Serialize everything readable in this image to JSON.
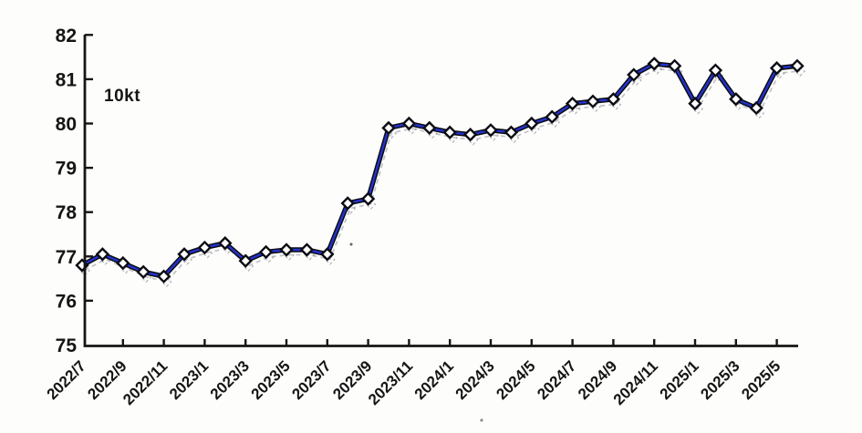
{
  "chart_data": {
    "type": "line",
    "title": "",
    "unit_label": "10kt",
    "xlabel": "",
    "ylabel": "",
    "ylim": [
      75,
      82
    ],
    "y_ticks": [
      82,
      81,
      80,
      79,
      78,
      77,
      76,
      75
    ],
    "x_tick_labels": [
      "2022/7",
      "2022/9",
      "2022/11",
      "2023/1",
      "2023/3",
      "2023/5",
      "2023/7",
      "2023/9",
      "2023/11",
      "2024/1",
      "2024/3",
      "2024/5",
      "2024/7",
      "2024/9",
      "2024/11",
      "2025/1",
      "2025/3",
      "2025/5"
    ],
    "x_tick_interval_months": 2,
    "grid": false,
    "legend": "none",
    "marker": "diamond",
    "points": [
      {
        "month": "2022/7",
        "value": 76.8
      },
      {
        "month": "2022/8",
        "value": 77.05
      },
      {
        "month": "2022/9",
        "value": 76.85
      },
      {
        "month": "2022/10",
        "value": 76.65
      },
      {
        "month": "2022/11",
        "value": 76.55
      },
      {
        "month": "2022/12",
        "value": 77.05
      },
      {
        "month": "2023/1",
        "value": 77.2
      },
      {
        "month": "2023/2",
        "value": 77.3
      },
      {
        "month": "2023/3",
        "value": 76.9
      },
      {
        "month": "2023/4",
        "value": 77.1
      },
      {
        "month": "2023/5",
        "value": 77.15
      },
      {
        "month": "2023/6",
        "value": 77.15
      },
      {
        "month": "2023/7",
        "value": 77.05
      },
      {
        "month": "2023/8",
        "value": 78.2
      },
      {
        "month": "2023/9",
        "value": 78.3
      },
      {
        "month": "2023/10",
        "value": 79.9
      },
      {
        "month": "2023/11",
        "value": 80.0
      },
      {
        "month": "2023/12",
        "value": 79.9
      },
      {
        "month": "2024/1",
        "value": 79.8
      },
      {
        "month": "2024/2",
        "value": 79.75
      },
      {
        "month": "2024/3",
        "value": 79.85
      },
      {
        "month": "2024/4",
        "value": 79.8
      },
      {
        "month": "2024/5",
        "value": 80.0
      },
      {
        "month": "2024/6",
        "value": 80.15
      },
      {
        "month": "2024/7",
        "value": 80.45
      },
      {
        "month": "2024/8",
        "value": 80.5
      },
      {
        "month": "2024/9",
        "value": 80.55
      },
      {
        "month": "2024/10",
        "value": 81.1
      },
      {
        "month": "2024/11",
        "value": 81.35
      },
      {
        "month": "2024/12",
        "value": 81.3
      },
      {
        "month": "2025/1",
        "value": 80.45
      },
      {
        "month": "2025/2",
        "value": 81.2
      },
      {
        "month": "2025/3",
        "value": 80.55
      },
      {
        "month": "2025/4",
        "value": 80.35
      },
      {
        "month": "2025/5",
        "value": 81.25
      },
      {
        "month": "2025/6",
        "value": 81.3
      }
    ],
    "colors": {
      "line": "#2433cc",
      "line_outline": "#0c0c14",
      "marker_fill": "#ffffff",
      "marker_stroke": "#0c0c14",
      "axis": "#161616",
      "ghost": "#8d929a"
    }
  }
}
